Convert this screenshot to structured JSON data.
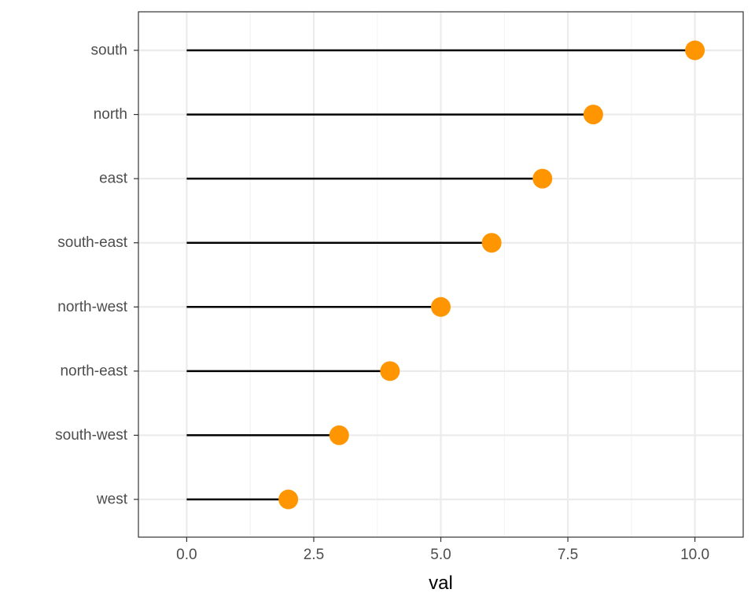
{
  "chart_data": {
    "type": "lollipop",
    "xlabel": "val",
    "ylabel": "",
    "xlim": [
      -0.95,
      10.95
    ],
    "x_ticks": [
      0.0,
      2.5,
      5.0,
      7.5,
      10.0
    ],
    "x_tick_labels": [
      "0.0",
      "2.5",
      "5.0",
      "7.5",
      "10.0"
    ],
    "x_minor_ticks": [
      1.25,
      3.75,
      6.25,
      8.75
    ],
    "categories": [
      "west",
      "south-west",
      "north-east",
      "north-west",
      "south-east",
      "east",
      "north",
      "south"
    ],
    "values": [
      2,
      3,
      4,
      5,
      6,
      7,
      8,
      10
    ],
    "stem_start": 0,
    "grid": true,
    "colors": {
      "point": "#FF9500",
      "stem": "#000000",
      "grid_major": "#EBEBEB",
      "grid_minor": "#F3F3F3",
      "panel_border": "#333333",
      "tick_text": "#4D4D4D"
    }
  }
}
